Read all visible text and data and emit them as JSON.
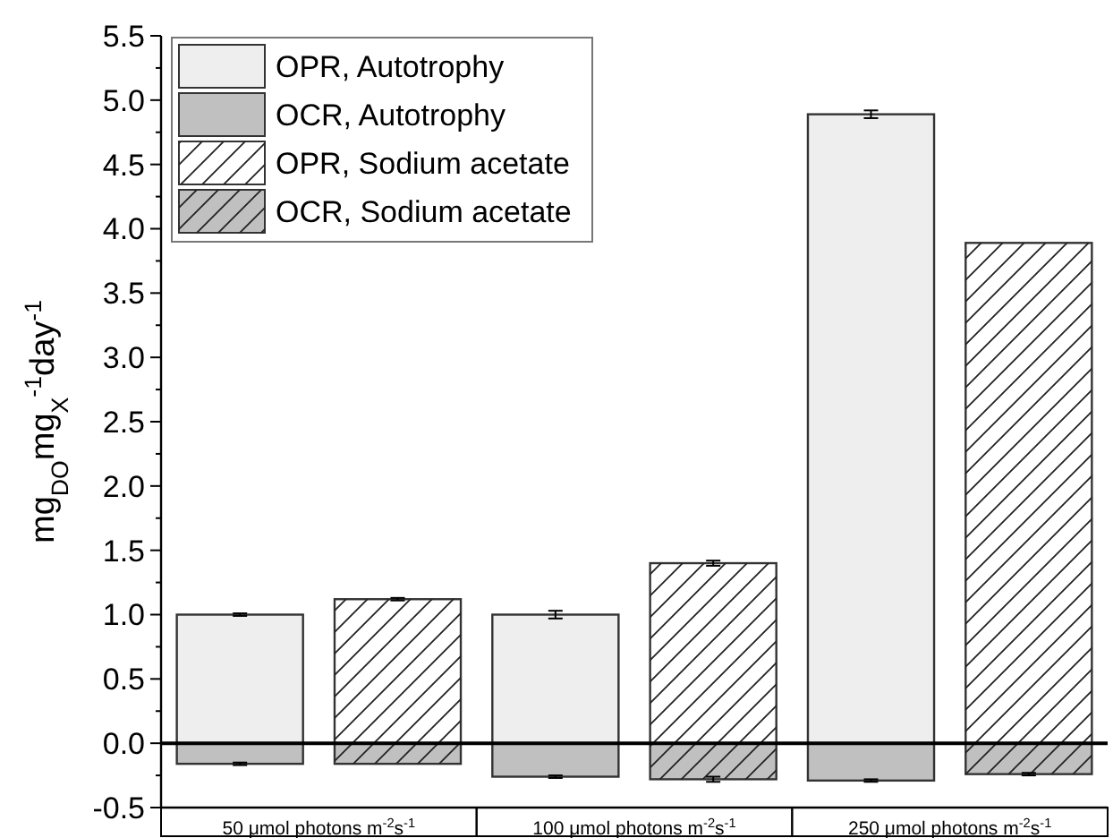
{
  "chart_data": {
    "type": "bar",
    "ylabel": "mg$_{DO}$mg$_{X}$$^{-1}$day$^{-1}$",
    "categories": [
      "50 μmol photons m$^{-2}$s$^{-1}$",
      null,
      "100 μmol photons m$^{-2}$s$^{-1}$",
      null,
      "250 μmol photons m$^{-2}$s$^{-1}$",
      null
    ],
    "stacked": true,
    "series": [
      {
        "name": "OPR, Autotrophy",
        "color": "#eeeeee",
        "values": [
          1.0,
          null,
          1.0,
          null,
          4.89,
          null
        ],
        "errors": [
          0.01,
          null,
          0.03,
          null,
          0.03,
          null
        ]
      },
      {
        "name": "OCR, Autotrophy",
        "color": "#c0c0c0",
        "values": [
          -0.16,
          null,
          -0.26,
          null,
          -0.29,
          null
        ],
        "errors": [
          0.01,
          null,
          0.01,
          null,
          0.01,
          null
        ]
      },
      {
        "name": "OPR, Sodium acetate",
        "color": "#ffffff",
        "values": [
          null,
          1.12,
          null,
          1.4,
          null,
          3.89
        ],
        "errors": [
          null,
          0.01,
          null,
          0.02,
          null,
          null
        ]
      },
      {
        "name": "OCR, Sodium acetate",
        "color": "#c0c0c0",
        "values": [
          null,
          -0.16,
          null,
          -0.28,
          null,
          -0.24
        ],
        "errors": [
          null,
          null,
          null,
          0.02,
          null,
          0.01
        ]
      }
    ],
    "ylim": [
      -0.5,
      5.5
    ],
    "yticks": [
      {
        "value": -0.5,
        "label": "-0.5"
      },
      {
        "value": 0,
        "label": "0.0"
      },
      {
        "value": 0.5,
        "label": "0.5"
      },
      {
        "value": 1,
        "label": "1.0"
      },
      {
        "value": 1.5,
        "label": "1.5"
      },
      {
        "value": 2,
        "label": "2.0"
      },
      {
        "value": 2.5,
        "label": "2.5"
      },
      {
        "value": 3,
        "label": "3.0"
      },
      {
        "value": 3.5,
        "label": "3.5"
      },
      {
        "value": 4,
        "label": "4.0"
      },
      {
        "value": 4.5,
        "label": "4.5"
      },
      {
        "value": 5,
        "label": "5.0"
      },
      {
        "value": 5.5,
        "label": "5.5"
      }
    ],
    "ref_lines": [
      {
        "axis": "y",
        "value": 0
      }
    ],
    "legend": "top left"
  }
}
